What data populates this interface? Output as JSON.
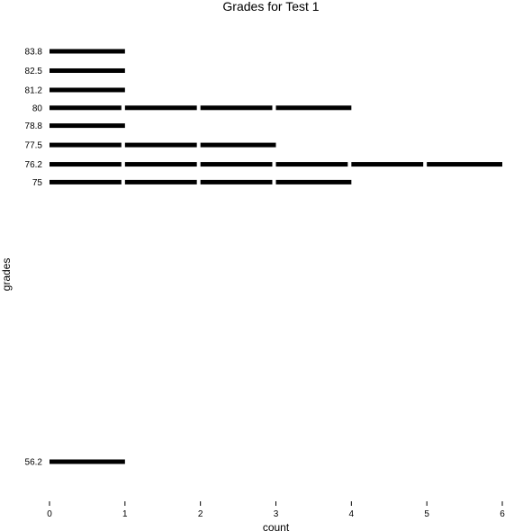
{
  "chart_data": {
    "type": "bar",
    "style": "stacked-unit-segments",
    "title": "Grades for Test 1",
    "xlabel": "count",
    "ylabel": "grades",
    "xlim": [
      0,
      6
    ],
    "ylim": [
      56.2,
      83.8
    ],
    "x_ticks": [
      "0",
      "1",
      "2",
      "3",
      "4",
      "5",
      "6"
    ],
    "y_ticks": [
      "56.2",
      "75",
      "76.2",
      "77.5",
      "78.8",
      "80",
      "81.2",
      "82.5",
      "83.8"
    ],
    "grid": false,
    "legend": "none",
    "bar_color": "#000000",
    "categories": [
      "56.2",
      "75",
      "76.2",
      "77.5",
      "78.8",
      "80",
      "81.2",
      "82.5",
      "83.8"
    ],
    "values": [
      1,
      4,
      6,
      3,
      1,
      4,
      1,
      1,
      1
    ]
  }
}
